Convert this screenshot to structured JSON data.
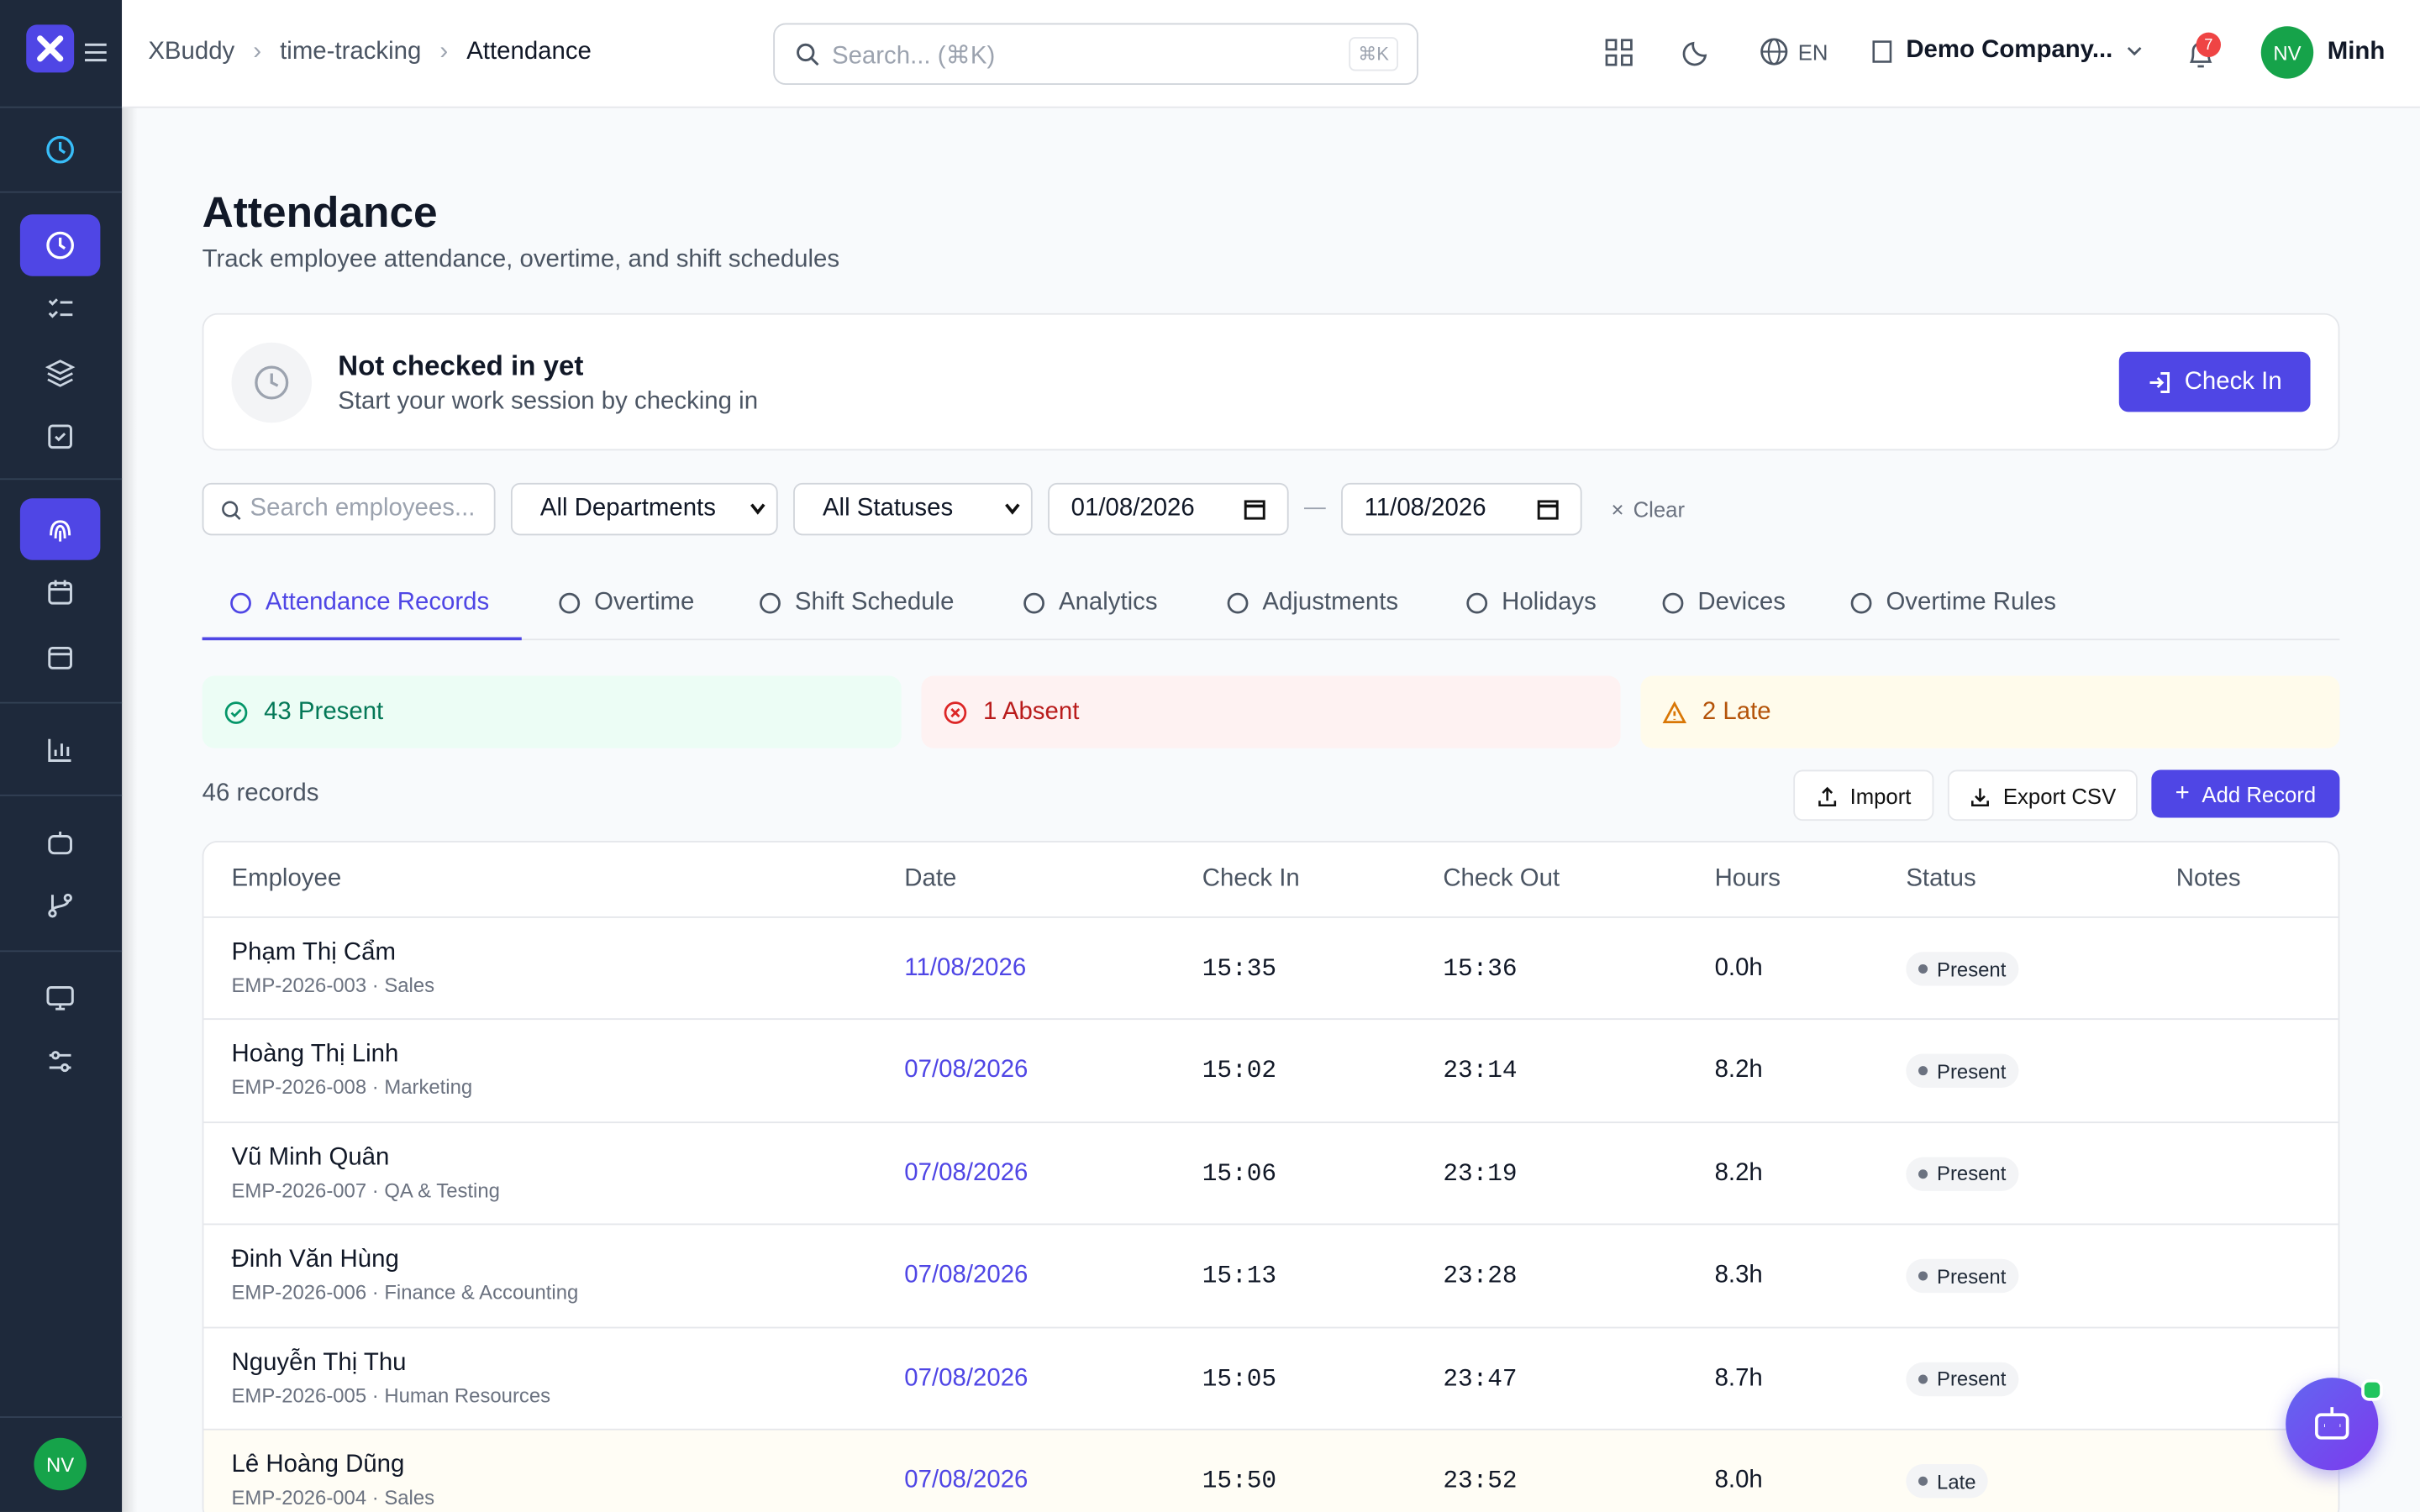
{
  "header": {
    "breadcrumb": [
      "XBuddy",
      "time-tracking",
      "Attendance"
    ],
    "search_placeholder": "Search... (⌘K)",
    "shortcut": "⌘K",
    "language": "EN",
    "company": "Demo Company...",
    "notifications": "7",
    "avatar": "NV",
    "user": "Minh"
  },
  "sidebar": {
    "avatar": "NV"
  },
  "page": {
    "title": "Attendance",
    "subtitle": "Track employee attendance, overtime, and shift schedules"
  },
  "check_in": {
    "status": "Not checked in yet",
    "hint": "Start your work session by checking in",
    "button": "Check In"
  },
  "filters": {
    "search": "Search employees...",
    "department": "All Departments",
    "status": "All Statuses",
    "date_from": "01/08/2026",
    "date_to": "11/08/2026",
    "clear": "Clear"
  },
  "tabs": [
    "Attendance Records",
    "Overtime",
    "Shift Schedule",
    "Analytics",
    "Adjustments",
    "Holidays",
    "Devices",
    "Overtime Rules"
  ],
  "summary": {
    "present": "43 Present",
    "absent": "1 Absent",
    "late": "2 Late"
  },
  "records_count": "46 records",
  "actions": {
    "import": "Import",
    "export": "Export CSV",
    "add": "Add Record"
  },
  "table": {
    "columns": [
      "Employee",
      "Date",
      "Check In",
      "Check Out",
      "Hours",
      "Status",
      "Notes"
    ],
    "rows": [
      {
        "name": "Phạm Thị Cẩm",
        "meta": "EMP-2026-003 · Sales",
        "date": "11/08/2026",
        "check_in": "15:35",
        "check_out": "15:36",
        "hours": "0.0h",
        "status": "Present"
      },
      {
        "name": "Hoàng Thị Linh",
        "meta": "EMP-2026-008 · Marketing",
        "date": "07/08/2026",
        "check_in": "15:02",
        "check_out": "23:14",
        "hours": "8.2h",
        "status": "Present"
      },
      {
        "name": "Vũ Minh Quân",
        "meta": "EMP-2026-007 · QA & Testing",
        "date": "07/08/2026",
        "check_in": "15:06",
        "check_out": "23:19",
        "hours": "8.2h",
        "status": "Present"
      },
      {
        "name": "Đinh Văn Hùng",
        "meta": "EMP-2026-006 · Finance & Accounting",
        "date": "07/08/2026",
        "check_in": "15:13",
        "check_out": "23:28",
        "hours": "8.3h",
        "status": "Present"
      },
      {
        "name": "Nguyễn Thị Thu",
        "meta": "EMP-2026-005 · Human Resources",
        "date": "07/08/2026",
        "check_in": "15:05",
        "check_out": "23:47",
        "hours": "8.7h",
        "status": "Present"
      },
      {
        "name": "Lê Hoàng Dũng",
        "meta": "EMP-2026-004 · Sales",
        "date": "07/08/2026",
        "check_in": "15:50",
        "check_out": "23:52",
        "hours": "8.0h",
        "status": "Late"
      }
    ]
  }
}
